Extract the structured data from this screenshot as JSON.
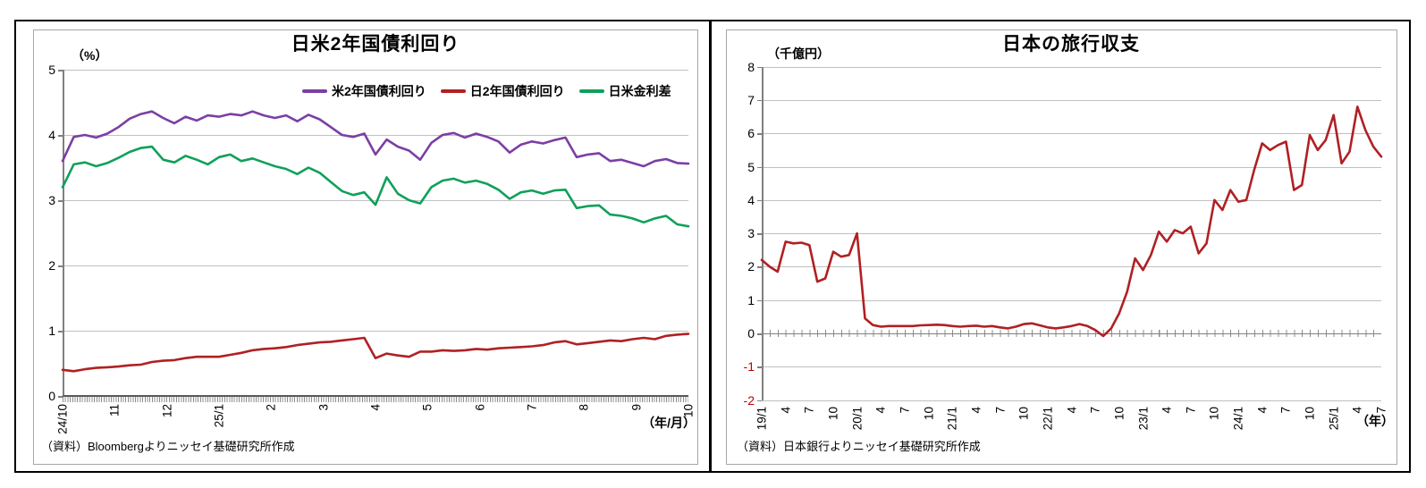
{
  "page": {
    "background": "#ffffff",
    "border_color": "#000000",
    "frame_color": "#a6a6a6",
    "gridline_color": "#c0c0c0",
    "negative_tick_color": "#c00000"
  },
  "chart_data": [
    {
      "type": "line",
      "title": "日米2年国債利回り",
      "y_unit": "（%）",
      "x_unit": "（年/月）",
      "source": "（資料）Bloombergよりニッセイ基礎研究所作成",
      "ylim": [
        0,
        5
      ],
      "y_ticks": [
        5,
        4,
        3,
        2,
        1,
        0
      ],
      "x_labels": [
        "24/10",
        "11",
        "12",
        "25/1",
        "2",
        "3",
        "4",
        "5",
        "6",
        "7",
        "8",
        "9",
        "10"
      ],
      "legend_position": "top-inside",
      "grid": "horizontal",
      "series": [
        {
          "name": "米2年国債利回り",
          "color": "#7b3fa4",
          "values": [
            3.6,
            3.97,
            4.0,
            3.96,
            4.02,
            4.12,
            4.25,
            4.32,
            4.36,
            4.26,
            4.18,
            4.28,
            4.22,
            4.3,
            4.28,
            4.32,
            4.3,
            4.36,
            4.3,
            4.26,
            4.3,
            4.21,
            4.31,
            4.24,
            4.12,
            4.0,
            3.97,
            4.02,
            3.7,
            3.93,
            3.82,
            3.76,
            3.62,
            3.88,
            4.0,
            4.03,
            3.96,
            4.02,
            3.97,
            3.9,
            3.73,
            3.85,
            3.9,
            3.87,
            3.92,
            3.96,
            3.66,
            3.7,
            3.72,
            3.6,
            3.62,
            3.57,
            3.52,
            3.6,
            3.63,
            3.57,
            3.56
          ]
        },
        {
          "name": "日2年国債利回り",
          "color": "#b02023",
          "values": [
            0.4,
            0.38,
            0.41,
            0.43,
            0.44,
            0.45,
            0.47,
            0.48,
            0.52,
            0.54,
            0.55,
            0.58,
            0.6,
            0.6,
            0.6,
            0.63,
            0.66,
            0.7,
            0.72,
            0.73,
            0.75,
            0.78,
            0.8,
            0.82,
            0.83,
            0.85,
            0.87,
            0.89,
            0.58,
            0.65,
            0.62,
            0.6,
            0.68,
            0.68,
            0.7,
            0.69,
            0.7,
            0.72,
            0.71,
            0.73,
            0.74,
            0.75,
            0.76,
            0.78,
            0.82,
            0.84,
            0.79,
            0.81,
            0.83,
            0.85,
            0.84,
            0.87,
            0.89,
            0.87,
            0.92,
            0.94,
            0.95
          ]
        },
        {
          "name": "日米金利差",
          "color": "#0fa05a",
          "values": [
            3.2,
            3.55,
            3.58,
            3.52,
            3.57,
            3.65,
            3.74,
            3.8,
            3.82,
            3.62,
            3.58,
            3.68,
            3.62,
            3.55,
            3.66,
            3.7,
            3.6,
            3.64,
            3.58,
            3.52,
            3.48,
            3.4,
            3.5,
            3.42,
            3.28,
            3.14,
            3.08,
            3.12,
            2.93,
            3.35,
            3.1,
            3.0,
            2.95,
            3.2,
            3.3,
            3.33,
            3.27,
            3.3,
            3.25,
            3.16,
            3.02,
            3.12,
            3.15,
            3.1,
            3.15,
            3.16,
            2.88,
            2.91,
            2.92,
            2.78,
            2.76,
            2.72,
            2.66,
            2.72,
            2.76,
            2.63,
            2.6
          ]
        }
      ]
    },
    {
      "type": "line",
      "title": "日本の旅行収支",
      "y_unit": "（千億円）",
      "x_unit": "（年）",
      "source": "（資料）日本銀行よりニッセイ基礎研究所作成",
      "ylim": [
        -2,
        8
      ],
      "y_ticks": [
        8,
        7,
        6,
        5,
        4,
        3,
        2,
        1,
        0,
        -1,
        -2
      ],
      "x_labels": [
        "19/1",
        "4",
        "7",
        "10",
        "20/1",
        "4",
        "7",
        "10",
        "21/1",
        "4",
        "7",
        "10",
        "22/1",
        "4",
        "7",
        "10",
        "23/1",
        "4",
        "7",
        "10",
        "24/1",
        "4",
        "7",
        "10",
        "25/1",
        "4",
        "7"
      ],
      "legend_position": "none",
      "grid": "horizontal",
      "series": [
        {
          "name": "旅行収支",
          "color": "#b02023",
          "values": [
            2.2,
            2.0,
            1.85,
            2.75,
            2.7,
            2.72,
            2.65,
            1.55,
            1.65,
            2.45,
            2.3,
            2.35,
            3.0,
            0.45,
            0.25,
            0.2,
            0.22,
            0.22,
            0.22,
            0.22,
            0.24,
            0.25,
            0.26,
            0.25,
            0.22,
            0.2,
            0.22,
            0.23,
            0.2,
            0.22,
            0.18,
            0.15,
            0.2,
            0.28,
            0.3,
            0.24,
            0.18,
            0.15,
            0.18,
            0.22,
            0.28,
            0.22,
            0.1,
            -0.08,
            0.15,
            0.6,
            1.25,
            2.25,
            1.9,
            2.35,
            3.05,
            2.75,
            3.1,
            3.0,
            3.2,
            2.4,
            2.7,
            4.0,
            3.7,
            4.3,
            3.95,
            4.0,
            4.9,
            5.7,
            5.5,
            5.65,
            5.75,
            4.3,
            4.45,
            5.95,
            5.5,
            5.8,
            6.55,
            5.1,
            5.45,
            6.8,
            6.1,
            5.6,
            5.3
          ]
        }
      ]
    }
  ]
}
